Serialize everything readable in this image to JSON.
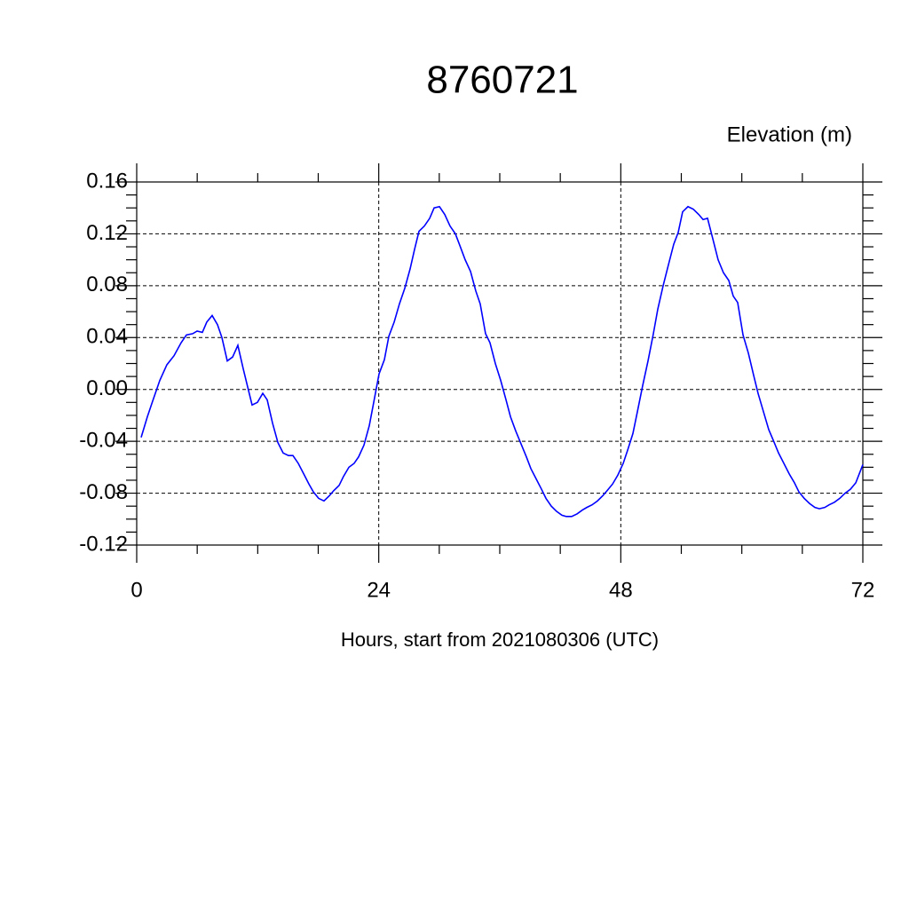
{
  "chart_data": {
    "type": "line",
    "title": "8760721",
    "ylabel": "Elevation (m)",
    "xlabel": "Hours, start from 2021080306 (UTC)",
    "xlim": [
      0,
      72
    ],
    "xticks": [
      0,
      24,
      48,
      72
    ],
    "ylim": [
      -0.12,
      0.16
    ],
    "yticks": [
      0.16,
      0.12,
      0.08,
      0.04,
      {
        "value": 0,
        "label": "0.00"
      },
      -0.04,
      -0.08,
      -0.12
    ],
    "grid": true,
    "x": [
      0.44,
      1.06,
      1.58,
      2.29,
      2.99,
      3.7,
      4.4,
      4.93,
      5.55,
      5.99,
      6.51,
      6.95,
      7.48,
      8.01,
      8.45,
      8.98,
      9.51,
      10.03,
      10.56,
      11.0,
      11.44,
      11.97,
      12.5,
      12.94,
      13.47,
      14.0,
      14.52,
      15.05,
      15.49,
      16.02,
      16.55,
      17.08,
      17.52,
      18.04,
      18.57,
      19.1,
      19.54,
      20.07,
      20.51,
      21.04,
      21.56,
      22.0,
      22.53,
      23.06,
      23.5,
      24.03,
      24.56,
      25.0,
      25.53,
      26.05,
      26.58,
      27.11,
      27.55,
      27.99,
      28.52,
      29.05,
      29.49,
      30.02,
      30.54,
      31.07,
      31.6,
      32.04,
      32.57,
      33.1,
      33.62,
      34.06,
      34.59,
      35.03,
      35.56,
      36.09,
      36.62,
      37.06,
      37.58,
      38.11,
      38.64,
      39.08,
      39.61,
      40.14,
      40.58,
      41.11,
      41.63,
      42.16,
      42.6,
      43.13,
      43.66,
      44.19,
      44.63,
      45.15,
      45.68,
      46.21,
      46.65,
      47.18,
      47.71,
      48.24,
      48.67,
      49.2,
      49.65,
      50.17,
      50.7,
      51.23,
      51.67,
      52.2,
      52.72,
      53.25,
      53.69,
      54.13,
      54.66,
      55.19,
      55.72,
      56.16,
      56.6,
      57.13,
      57.65,
      58.18,
      58.71,
      59.15,
      59.59,
      60.12,
      60.65,
      61.17,
      61.61,
      62.14,
      62.67,
      63.11,
      63.64,
      64.17,
      64.69,
      65.22,
      65.66,
      66.19,
      66.72,
      67.25,
      67.69,
      68.22,
      68.66,
      69.18,
      69.71,
      70.24,
      70.77,
      71.3,
      72.0
    ],
    "series": [
      {
        "name": "Elevation",
        "color": "#0000ff",
        "values": [
          -0.037,
          -0.021,
          -0.009,
          0.007,
          0.019,
          0.026,
          0.036,
          0.042,
          0.043,
          0.045,
          0.044,
          0.052,
          0.057,
          0.05,
          0.04,
          0.022,
          0.025,
          0.034,
          0.016,
          0.002,
          -0.012,
          -0.01,
          -0.003,
          -0.008,
          -0.026,
          -0.041,
          -0.049,
          -0.051,
          -0.051,
          -0.057,
          -0.065,
          -0.073,
          -0.079,
          -0.084,
          -0.086,
          -0.082,
          -0.078,
          -0.074,
          -0.067,
          -0.06,
          -0.057,
          -0.052,
          -0.043,
          -0.028,
          -0.01,
          0.012,
          0.023,
          0.041,
          0.052,
          0.066,
          0.078,
          0.093,
          0.108,
          0.122,
          0.126,
          0.132,
          0.14,
          0.141,
          0.135,
          0.126,
          0.12,
          0.111,
          0.1,
          0.091,
          0.076,
          0.066,
          0.043,
          0.036,
          0.02,
          0.007,
          -0.008,
          -0.021,
          -0.032,
          -0.042,
          -0.052,
          -0.061,
          -0.069,
          -0.077,
          -0.084,
          -0.09,
          -0.094,
          -0.097,
          -0.098,
          -0.098,
          -0.096,
          -0.093,
          -0.091,
          -0.089,
          -0.086,
          -0.082,
          -0.078,
          -0.073,
          -0.066,
          -0.057,
          -0.047,
          -0.034,
          -0.017,
          0.003,
          0.022,
          0.043,
          0.062,
          0.08,
          0.096,
          0.112,
          0.121,
          0.137,
          0.141,
          0.139,
          0.135,
          0.131,
          0.132,
          0.116,
          0.1,
          0.09,
          0.084,
          0.072,
          0.067,
          0.042,
          0.028,
          0.011,
          -0.003,
          -0.017,
          -0.031,
          -0.039,
          -0.049,
          -0.057,
          -0.065,
          -0.072,
          -0.079,
          -0.084,
          -0.088,
          -0.091,
          -0.092,
          -0.091,
          -0.089,
          -0.087,
          -0.084,
          -0.08,
          -0.077,
          -0.072,
          -0.058
        ]
      }
    ]
  }
}
